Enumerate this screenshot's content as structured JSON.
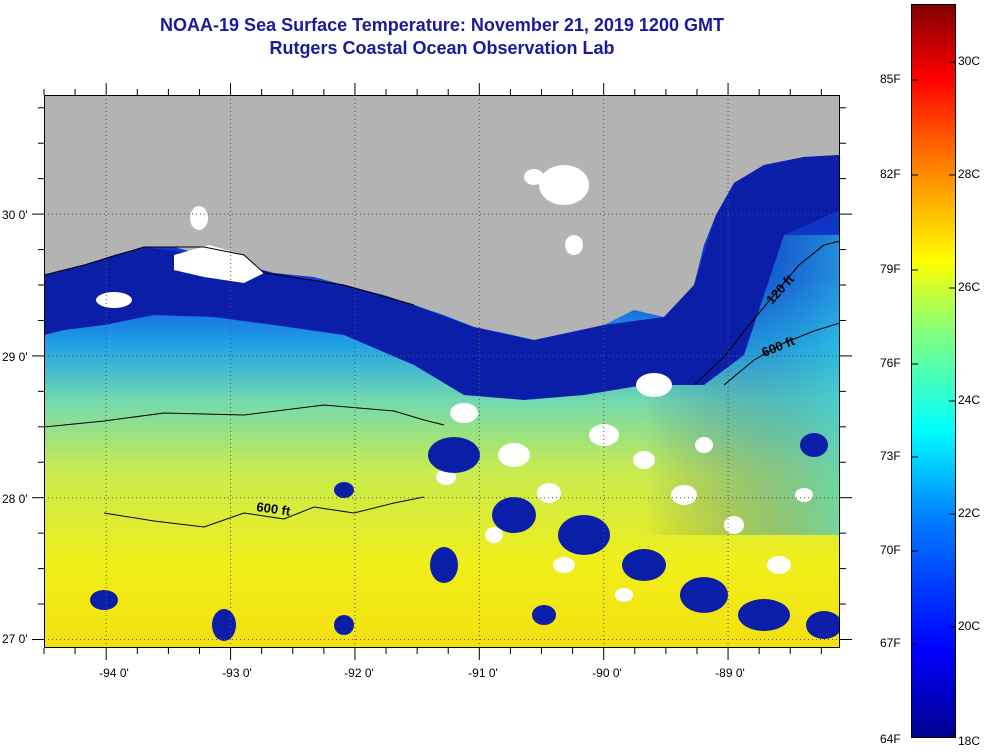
{
  "title": {
    "line1": "NOAA-19 Sea Surface Temperature:  November 21, 2019 1200 GMT",
    "line2": "Rutgers Coastal Ocean Observation Lab"
  },
  "axes": {
    "x_ticks": [
      {
        "label": "-94 0'",
        "lon": -94.0
      },
      {
        "label": "-93 0'",
        "lon": -93.0
      },
      {
        "label": "-92 0'",
        "lon": -92.0
      },
      {
        "label": "-91 0'",
        "lon": -91.0
      },
      {
        "label": "-90 0'",
        "lon": -90.0
      },
      {
        "label": "-89 0'",
        "lon": -89.0
      }
    ],
    "y_ticks": [
      {
        "label": "30 0'",
        "lat": 30.0
      },
      {
        "label": "29 0'",
        "lat": 29.0
      },
      {
        "label": "28 0'",
        "lat": 28.0
      },
      {
        "label": "27 0'",
        "lat": 27.0
      }
    ]
  },
  "contour_labels": [
    {
      "text": "120 ft",
      "depth_ft": 120
    },
    {
      "text": "600 ft",
      "depth_ft": 600
    },
    {
      "text": "600 ft",
      "depth_ft": 600
    }
  ],
  "colorbar": {
    "fahrenheit_labels": [
      "85F",
      "82F",
      "79F",
      "76F",
      "73F",
      "70F",
      "67F",
      "64F"
    ],
    "celsius_labels": [
      "30C",
      "28C",
      "26C",
      "24C",
      "22C",
      "20C",
      "18C"
    ],
    "colors": [
      "#00008f",
      "#0000ff",
      "#0080ff",
      "#00ffff",
      "#80ff80",
      "#ffff00",
      "#ff8000",
      "#ff0000",
      "#800000"
    ]
  },
  "colors": {
    "land": "#b3b3b3",
    "cloud": "#ffffff",
    "title": "#1a1a9c",
    "cold_water": "#0b1ea8",
    "warm_water": "#f2ee10"
  }
}
